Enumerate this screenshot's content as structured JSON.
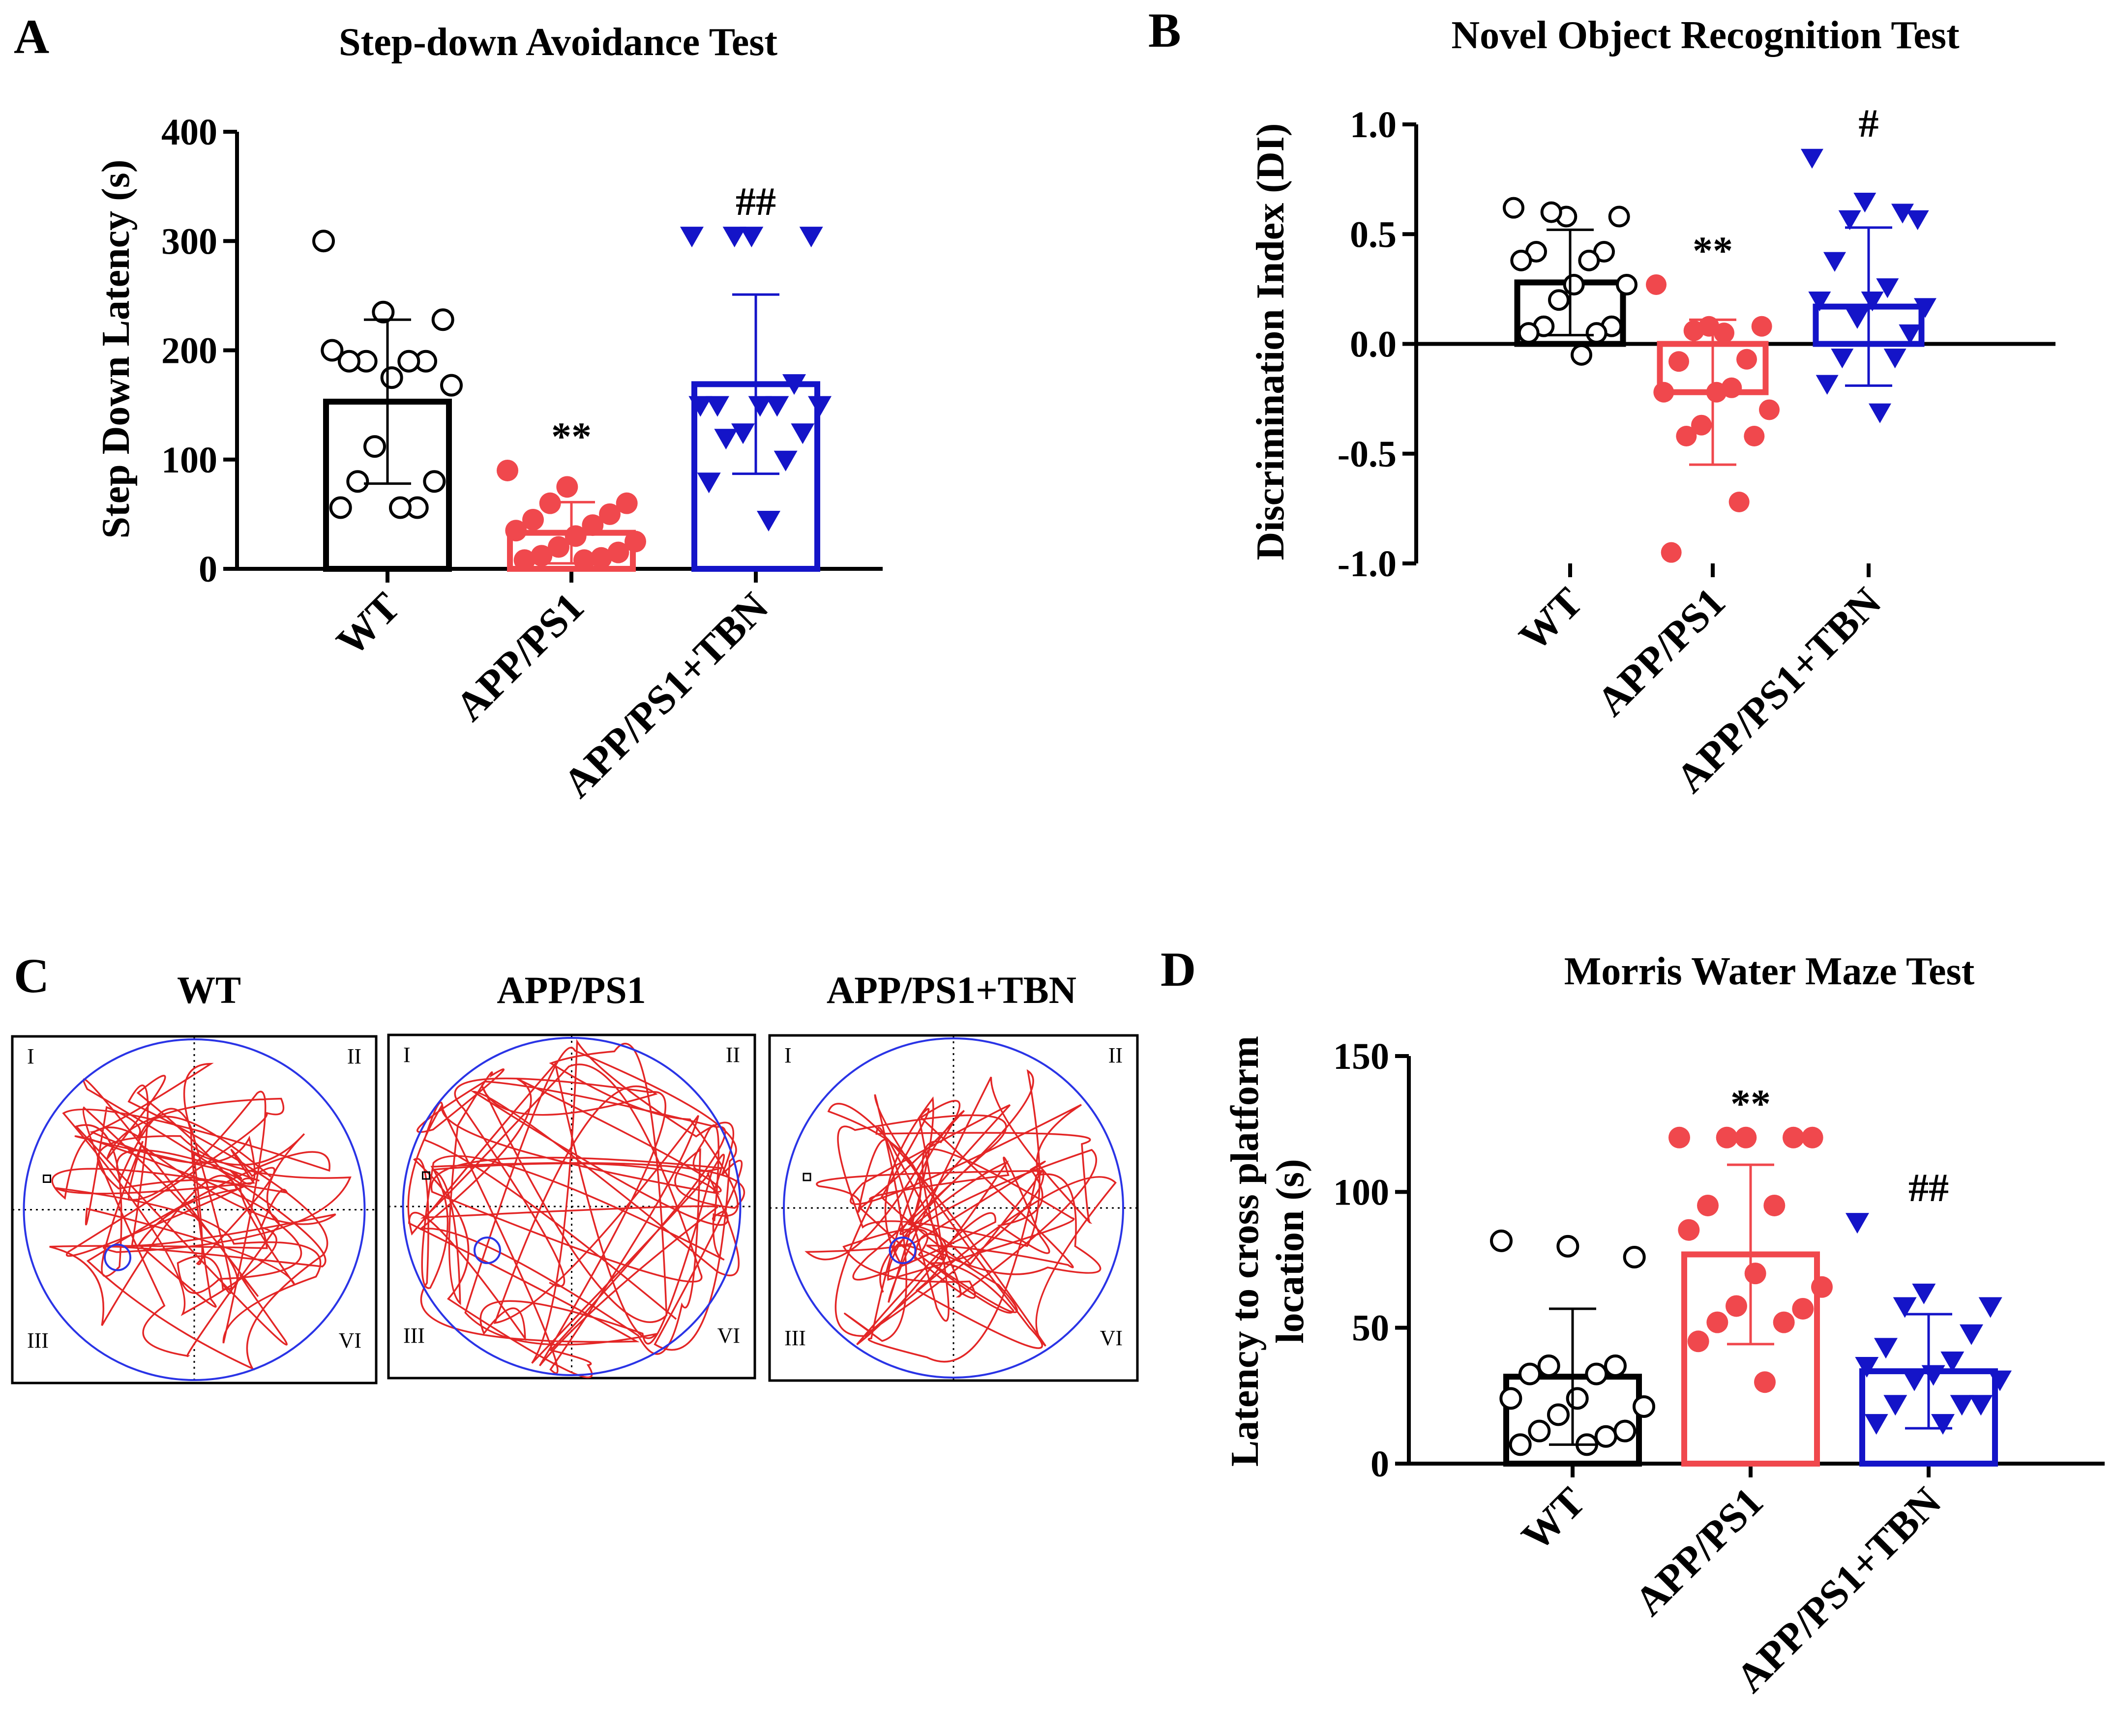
{
  "colors": {
    "wt": "#000000",
    "app": "#f0484d",
    "tbn": "#1414c8",
    "track": "#e32626",
    "pool": "#2a34e6",
    "grid": "#000000"
  },
  "chart_data": [
    {
      "panel": "A",
      "type": "bar",
      "title": "Step-down Avoidance Test",
      "ylabel": "Step Down Latency (s)",
      "xlabel": "",
      "ylim": [
        0,
        400
      ],
      "yticks": [
        0,
        100,
        200,
        300,
        400
      ],
      "ytick_labels": [
        "0",
        "100",
        "200",
        "300",
        "400"
      ],
      "categories": [
        "WT",
        "APP/PS1",
        "APP/PS1+TBN"
      ],
      "means": [
        153,
        33,
        169
      ],
      "sd": [
        75,
        28,
        82
      ],
      "significance": [
        "",
        "**",
        "##"
      ],
      "markers": [
        "circle-open",
        "circle-filled",
        "triangle-down"
      ],
      "points": [
        [
          300,
          235,
          228,
          190,
          190,
          190,
          190,
          200,
          175,
          168,
          112,
          80,
          80,
          56,
          56,
          56
        ],
        [
          90,
          75,
          60,
          60,
          50,
          45,
          40,
          35,
          30,
          25,
          20,
          15,
          12,
          10,
          8,
          8
        ],
        [
          305,
          305,
          305,
          305,
          170,
          150,
          150,
          150,
          150,
          150,
          125,
          125,
          120,
          100,
          80,
          45
        ]
      ]
    },
    {
      "panel": "B",
      "type": "bar",
      "title": "Novel Object Recognition Test",
      "ylabel": "Discrimination Index (DI)",
      "xlabel": "",
      "ylim": [
        -1.0,
        1.0
      ],
      "yticks": [
        -1.0,
        -0.5,
        0.0,
        0.5,
        1.0
      ],
      "ytick_labels": [
        "-1.0",
        "-0.5",
        "0.0",
        "0.5",
        "1.0"
      ],
      "categories": [
        "WT",
        "APP/PS1",
        "APP/PS1+TBN"
      ],
      "means": [
        0.28,
        -0.22,
        0.17
      ],
      "sd": [
        0.24,
        0.33,
        0.36
      ],
      "significance": [
        "",
        "**",
        "#"
      ],
      "markers": [
        "circle-open",
        "circle-filled",
        "triangle-down"
      ],
      "points": [
        [
          0.62,
          0.58,
          0.58,
          0.6,
          0.42,
          0.42,
          0.38,
          0.38,
          0.27,
          0.27,
          0.2,
          0.08,
          0.08,
          0.05,
          0.05,
          -0.05
        ],
        [
          0.27,
          0.08,
          0.08,
          0.06,
          -0.07,
          -0.08,
          -0.2,
          -0.22,
          -0.22,
          -0.3,
          -0.37,
          -0.42,
          -0.42,
          -0.72,
          -0.95,
          0.05
        ],
        [
          0.85,
          0.65,
          0.57,
          0.57,
          0.6,
          0.38,
          0.26,
          0.2,
          0.2,
          0.17,
          0.12,
          0.05,
          -0.06,
          -0.06,
          -0.18,
          -0.31
        ]
      ]
    },
    {
      "panel": "D",
      "type": "bar",
      "title": "Morris Water Maze Test",
      "ylabel_line1": "Latency to cross platform",
      "ylabel_line2": "location  (s)",
      "xlabel": "",
      "ylim": [
        0,
        150
      ],
      "yticks": [
        0,
        50,
        100,
        150
      ],
      "ytick_labels": [
        "0",
        "50",
        "100",
        "150"
      ],
      "categories": [
        "WT",
        "APP/PS1",
        "APP/PS1+TBN"
      ],
      "means": [
        32,
        77,
        34
      ],
      "sd": [
        25,
        33,
        21
      ],
      "significance": [
        "",
        "**",
        "##"
      ],
      "markers": [
        "circle-open",
        "circle-filled",
        "triangle-down"
      ],
      "points": [
        [
          82,
          80,
          76,
          36,
          36,
          33,
          33,
          24,
          24,
          21,
          18,
          12,
          12,
          10,
          7,
          7
        ],
        [
          120,
          120,
          120,
          120,
          120,
          95,
          95,
          86,
          70,
          65,
          58,
          57,
          52,
          52,
          45,
          30
        ],
        [
          89,
          63,
          58,
          58,
          48,
          43,
          38,
          36,
          33,
          31,
          31,
          22,
          22,
          22,
          15,
          15
        ]
      ]
    }
  ],
  "panel_c": {
    "label": "C",
    "maps": [
      {
        "title": "WT",
        "quadrants": [
          "I",
          "II",
          "III",
          "VI"
        ]
      },
      {
        "title": "APP/PS1",
        "quadrants": [
          "I",
          "II",
          "III",
          "VI"
        ]
      },
      {
        "title": "APP/PS1+TBN",
        "quadrants": [
          "I",
          "II",
          "III",
          "VI"
        ]
      }
    ]
  }
}
